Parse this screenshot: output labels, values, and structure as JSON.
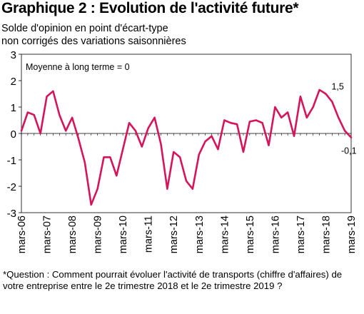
{
  "title": "Graphique 2 : Evolution de l'activité future*",
  "subtitle_line1": "Solde d'opinion en point d'écart-type",
  "subtitle_line2": "non corrigés des variations saisonnières",
  "annotation": "Moyenne à long terme = 0",
  "footnote": "*Question : Comment pourrait évoluer l'activité de transports (chiffre d'affaires) de votre entreprise entre le 2e trimestre 2018 et le 2e trimestre 2019 ?",
  "colors": {
    "series": "#d5145a",
    "axis": "#000000"
  },
  "chart_data": {
    "type": "line",
    "ylim": [
      -3,
      3
    ],
    "yticks": [
      "3",
      "2",
      "1",
      "0",
      "-1",
      "-2",
      "-3"
    ],
    "xtick_labels": [
      "mars-06",
      "mars-07",
      "mars-08",
      "mars-09",
      "mars-10",
      "mars-11",
      "mars-12",
      "mars-13",
      "mars-14",
      "mars-15",
      "mars-16",
      "mars-17",
      "mars-18",
      "mars-19"
    ],
    "grid": false,
    "series": [
      {
        "x": [
          "mars-06",
          "juin-06",
          "sept-06",
          "déc-06",
          "mars-07",
          "juin-07",
          "sept-07",
          "déc-07",
          "mars-08",
          "juin-08",
          "sept-08",
          "déc-08",
          "mars-09",
          "juin-09",
          "sept-09",
          "déc-09",
          "mars-10",
          "juin-10",
          "sept-10",
          "déc-10",
          "mars-11",
          "juin-11",
          "sept-11",
          "déc-11",
          "mars-12",
          "juin-12",
          "sept-12",
          "déc-12",
          "mars-13",
          "juin-13",
          "sept-13",
          "déc-13",
          "mars-14",
          "juin-14",
          "sept-14",
          "déc-14",
          "mars-15",
          "juin-15",
          "sept-15",
          "déc-15",
          "mars-16",
          "juin-16",
          "sept-16",
          "déc-16",
          "mars-17",
          "juin-17",
          "sept-17",
          "déc-17",
          "mars-18",
          "juin-18",
          "sept-18",
          "déc-18",
          "mars-19"
        ],
        "values": [
          0.1,
          0.8,
          0.7,
          0.0,
          1.4,
          1.6,
          0.7,
          0.1,
          0.6,
          -0.2,
          -1.1,
          -2.7,
          -2.1,
          -0.9,
          -0.9,
          -1.6,
          -0.6,
          0.4,
          0.1,
          -0.5,
          0.2,
          0.6,
          -0.4,
          -2.1,
          -0.7,
          -0.9,
          -1.8,
          -2.1,
          -0.8,
          -0.3,
          -0.1,
          -0.6,
          0.5,
          0.4,
          0.35,
          -0.7,
          0.45,
          0.5,
          0.4,
          -0.45,
          1.0,
          0.6,
          0.8,
          -0.1,
          1.4,
          0.6,
          1.0,
          1.65,
          1.5,
          1.2,
          0.6,
          0.1,
          -0.15
        ]
      }
    ],
    "data_labels": [
      {
        "index": 48,
        "text": "1,5"
      },
      {
        "index": 52,
        "text": "-0,1"
      }
    ]
  }
}
